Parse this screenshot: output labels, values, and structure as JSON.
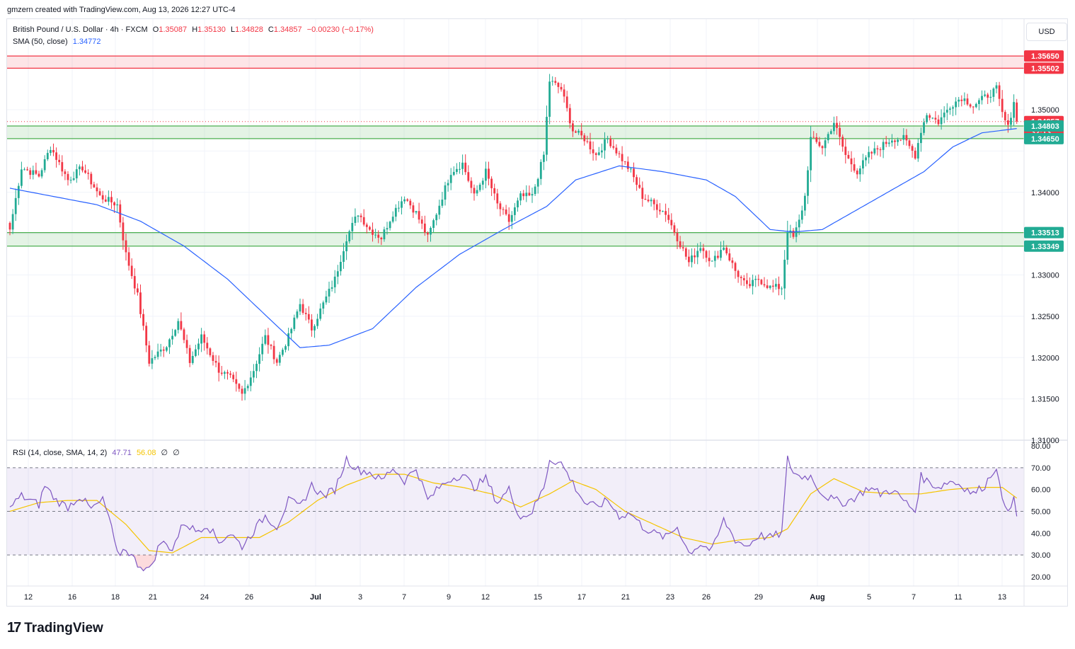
{
  "caption": "gmzern created with TradingView.com, Aug 13, 2026 12:27 UTC-4",
  "header": {
    "symbol": "British Pound / U.S. Dollar · 4h · FXCM",
    "o_label": "O",
    "o": "1.35087",
    "h_label": "H",
    "h": "1.35130",
    "l_label": "L",
    "l": "1.34828",
    "c_label": "C",
    "c": "1.34857",
    "change": "−0.00230 (−0.17%)",
    "sma_label": "SMA (50, close)",
    "sma_value": "1.34772",
    "rsi_label": "RSI (14, close, SMA, 14, 2)",
    "rsi_value": "47.71",
    "rsi_sma_value": "56.08",
    "rsi_extra1": "∅",
    "rsi_extra2": "∅"
  },
  "currency_button": "USD",
  "price_axis": {
    "ticks": [
      "1.35000",
      "1.34000",
      "1.33000",
      "1.32500",
      "1.32000",
      "1.31500",
      "1.31000"
    ],
    "tick_values": [
      1.35,
      1.34,
      1.33,
      1.325,
      1.32,
      1.315,
      1.31
    ],
    "labels": [
      {
        "text": "1.35650",
        "value": 1.3565,
        "color": "#f23645"
      },
      {
        "text": "1.35502",
        "value": 1.35502,
        "color": "#f23645"
      },
      {
        "text": "1.34857",
        "value": 1.34857,
        "color": "#f23645"
      },
      {
        "text": "32:13",
        "value": 1.3473,
        "color": "#f23645"
      },
      {
        "text": "1.34803",
        "value": 1.34803,
        "color": "#22ab94"
      },
      {
        "text": "1.34650",
        "value": 1.3465,
        "color": "#22ab94"
      },
      {
        "text": "1.33513",
        "value": 1.33513,
        "color": "#22ab94"
      },
      {
        "text": "1.33349",
        "value": 1.33349,
        "color": "#22ab94"
      }
    ],
    "hidden_ticks": [
      "1.34500",
      "1.33500"
    ]
  },
  "rsi_axis": {
    "ticks": [
      "80.00",
      "70.00",
      "60.00",
      "50.00",
      "40.00",
      "30.00",
      "20.00"
    ],
    "tick_values": [
      80,
      70,
      60,
      50,
      40,
      30,
      20
    ]
  },
  "time_axis": {
    "labels": [
      "12",
      "16",
      "18",
      "21",
      "24",
      "26",
      "Jul",
      "3",
      "7",
      "9",
      "12",
      "15",
      "17",
      "21",
      "23",
      "26",
      "29",
      "Aug",
      "5",
      "7",
      "11",
      "13"
    ],
    "bold": [
      "Jul",
      "Aug"
    ]
  },
  "colors": {
    "up": "#22ab94",
    "down": "#f23645",
    "sma": "#2962ff",
    "rsi": "#7e57c2",
    "rsi_sma": "#f5c400",
    "resistance_zone": "#f23645",
    "support_zone": "#4caf50"
  },
  "zones": [
    {
      "type": "resistance",
      "top": 1.3565,
      "bottom": 1.35502
    },
    {
      "type": "support",
      "top": 1.34803,
      "bottom": 1.3465
    },
    {
      "type": "support",
      "top": 1.33513,
      "bottom": 1.33349
    }
  ],
  "logo": {
    "mark": "17",
    "text": "TradingView"
  },
  "chart_data": [
    {
      "type": "candlestick",
      "symbol": "GBP/USD 4h",
      "ylim": [
        1.31,
        1.3595
      ],
      "x_ticks": [
        "12",
        "16",
        "18",
        "21",
        "24",
        "26",
        "Jul",
        "3",
        "7",
        "9",
        "12",
        "15",
        "17",
        "21",
        "23",
        "26",
        "29",
        "Aug",
        "5",
        "7",
        "11",
        "13"
      ],
      "close_anchors": [
        {
          "i": 0,
          "v": 1.3355
        },
        {
          "i": 4,
          "v": 1.343
        },
        {
          "i": 10,
          "v": 1.342
        },
        {
          "i": 14,
          "v": 1.3455
        },
        {
          "i": 20,
          "v": 1.3415
        },
        {
          "i": 25,
          "v": 1.343
        },
        {
          "i": 31,
          "v": 1.3395
        },
        {
          "i": 37,
          "v": 1.3385
        },
        {
          "i": 40,
          "v": 1.3325
        },
        {
          "i": 44,
          "v": 1.3275
        },
        {
          "i": 48,
          "v": 1.3195
        },
        {
          "i": 54,
          "v": 1.3215
        },
        {
          "i": 58,
          "v": 1.3245
        },
        {
          "i": 62,
          "v": 1.3195
        },
        {
          "i": 66,
          "v": 1.3225
        },
        {
          "i": 72,
          "v": 1.3185
        },
        {
          "i": 76,
          "v": 1.3175
        },
        {
          "i": 80,
          "v": 1.3155
        },
        {
          "i": 84,
          "v": 1.3185
        },
        {
          "i": 88,
          "v": 1.3225
        },
        {
          "i": 92,
          "v": 1.3195
        },
        {
          "i": 96,
          "v": 1.3225
        },
        {
          "i": 100,
          "v": 1.3265
        },
        {
          "i": 104,
          "v": 1.3235
        },
        {
          "i": 108,
          "v": 1.3265
        },
        {
          "i": 112,
          "v": 1.3295
        },
        {
          "i": 116,
          "v": 1.3345
        },
        {
          "i": 120,
          "v": 1.3375
        },
        {
          "i": 124,
          "v": 1.3355
        },
        {
          "i": 128,
          "v": 1.3345
        },
        {
          "i": 132,
          "v": 1.3375
        },
        {
          "i": 136,
          "v": 1.3395
        },
        {
          "i": 140,
          "v": 1.3375
        },
        {
          "i": 144,
          "v": 1.3345
        },
        {
          "i": 148,
          "v": 1.3385
        },
        {
          "i": 152,
          "v": 1.3425
        },
        {
          "i": 156,
          "v": 1.3435
        },
        {
          "i": 160,
          "v": 1.3395
        },
        {
          "i": 164,
          "v": 1.3425
        },
        {
          "i": 168,
          "v": 1.3385
        },
        {
          "i": 172,
          "v": 1.3365
        },
        {
          "i": 176,
          "v": 1.3395
        },
        {
          "i": 180,
          "v": 1.3395
        },
        {
          "i": 184,
          "v": 1.3445
        },
        {
          "i": 186,
          "v": 1.3535
        },
        {
          "i": 190,
          "v": 1.3525
        },
        {
          "i": 194,
          "v": 1.3475
        },
        {
          "i": 198,
          "v": 1.3465
        },
        {
          "i": 202,
          "v": 1.3445
        },
        {
          "i": 206,
          "v": 1.3465
        },
        {
          "i": 210,
          "v": 1.3445
        },
        {
          "i": 214,
          "v": 1.3425
        },
        {
          "i": 218,
          "v": 1.3395
        },
        {
          "i": 222,
          "v": 1.3385
        },
        {
          "i": 226,
          "v": 1.3375
        },
        {
          "i": 230,
          "v": 1.3345
        },
        {
          "i": 234,
          "v": 1.3315
        },
        {
          "i": 238,
          "v": 1.3335
        },
        {
          "i": 242,
          "v": 1.3315
        },
        {
          "i": 246,
          "v": 1.3335
        },
        {
          "i": 250,
          "v": 1.3305
        },
        {
          "i": 254,
          "v": 1.3285
        },
        {
          "i": 258,
          "v": 1.3295
        },
        {
          "i": 262,
          "v": 1.3285
        },
        {
          "i": 266,
          "v": 1.3285
        },
        {
          "i": 268,
          "v": 1.3355
        },
        {
          "i": 270,
          "v": 1.3345
        },
        {
          "i": 272,
          "v": 1.3365
        },
        {
          "i": 274,
          "v": 1.3395
        },
        {
          "i": 276,
          "v": 1.3465
        },
        {
          "i": 280,
          "v": 1.3455
        },
        {
          "i": 284,
          "v": 1.3485
        },
        {
          "i": 288,
          "v": 1.3445
        },
        {
          "i": 292,
          "v": 1.3425
        },
        {
          "i": 296,
          "v": 1.3445
        },
        {
          "i": 300,
          "v": 1.3455
        },
        {
          "i": 304,
          "v": 1.3465
        },
        {
          "i": 308,
          "v": 1.3465
        },
        {
          "i": 312,
          "v": 1.3445
        },
        {
          "i": 314,
          "v": 1.3475
        },
        {
          "i": 316,
          "v": 1.3495
        },
        {
          "i": 320,
          "v": 1.3485
        },
        {
          "i": 324,
          "v": 1.3505
        },
        {
          "i": 328,
          "v": 1.3515
        },
        {
          "i": 332,
          "v": 1.3505
        },
        {
          "i": 336,
          "v": 1.3515
        },
        {
          "i": 340,
          "v": 1.3525
        },
        {
          "i": 342,
          "v": 1.3495
        },
        {
          "i": 344,
          "v": 1.3478
        },
        {
          "i": 346,
          "v": 1.3511
        },
        {
          "i": 347,
          "v": 1.34857
        }
      ],
      "sma_anchors": [
        {
          "i": 0,
          "v": 1.3405
        },
        {
          "i": 30,
          "v": 1.3385
        },
        {
          "i": 45,
          "v": 1.3365
        },
        {
          "i": 60,
          "v": 1.3335
        },
        {
          "i": 75,
          "v": 1.3295
        },
        {
          "i": 90,
          "v": 1.3245
        },
        {
          "i": 100,
          "v": 1.3212
        },
        {
          "i": 110,
          "v": 1.3215
        },
        {
          "i": 125,
          "v": 1.3235
        },
        {
          "i": 140,
          "v": 1.3285
        },
        {
          "i": 155,
          "v": 1.3325
        },
        {
          "i": 170,
          "v": 1.3355
        },
        {
          "i": 185,
          "v": 1.3383
        },
        {
          "i": 195,
          "v": 1.3415
        },
        {
          "i": 210,
          "v": 1.3432
        },
        {
          "i": 225,
          "v": 1.3425
        },
        {
          "i": 240,
          "v": 1.3415
        },
        {
          "i": 250,
          "v": 1.3395
        },
        {
          "i": 262,
          "v": 1.3355
        },
        {
          "i": 270,
          "v": 1.3352
        },
        {
          "i": 280,
          "v": 1.3355
        },
        {
          "i": 290,
          "v": 1.3375
        },
        {
          "i": 300,
          "v": 1.3395
        },
        {
          "i": 315,
          "v": 1.3425
        },
        {
          "i": 325,
          "v": 1.3455
        },
        {
          "i": 335,
          "v": 1.3472
        },
        {
          "i": 347,
          "v": 1.34772
        }
      ],
      "last": {
        "open": 1.35087,
        "high": 1.3513,
        "low": 1.34828,
        "close": 1.34857
      }
    },
    {
      "type": "line",
      "name": "RSI (14, close, SMA, 14, 2)",
      "ylim": [
        17,
        82
      ],
      "levels": [
        70,
        50,
        30
      ],
      "rsi_anchors": [
        {
          "i": 0,
          "v": 52
        },
        {
          "i": 4,
          "v": 57
        },
        {
          "i": 10,
          "v": 53
        },
        {
          "i": 12,
          "v": 62
        },
        {
          "i": 16,
          "v": 55
        },
        {
          "i": 20,
          "v": 52
        },
        {
          "i": 24,
          "v": 57
        },
        {
          "i": 28,
          "v": 51
        },
        {
          "i": 32,
          "v": 55
        },
        {
          "i": 34,
          "v": 48
        },
        {
          "i": 37,
          "v": 30
        },
        {
          "i": 40,
          "v": 33
        },
        {
          "i": 44,
          "v": 26
        },
        {
          "i": 48,
          "v": 23
        },
        {
          "i": 52,
          "v": 36
        },
        {
          "i": 56,
          "v": 33
        },
        {
          "i": 60,
          "v": 45
        },
        {
          "i": 64,
          "v": 41
        },
        {
          "i": 68,
          "v": 44
        },
        {
          "i": 72,
          "v": 36
        },
        {
          "i": 76,
          "v": 40
        },
        {
          "i": 80,
          "v": 34
        },
        {
          "i": 84,
          "v": 41
        },
        {
          "i": 88,
          "v": 48
        },
        {
          "i": 92,
          "v": 43
        },
        {
          "i": 96,
          "v": 55
        },
        {
          "i": 100,
          "v": 52
        },
        {
          "i": 104,
          "v": 62
        },
        {
          "i": 108,
          "v": 57
        },
        {
          "i": 112,
          "v": 60
        },
        {
          "i": 116,
          "v": 74
        },
        {
          "i": 120,
          "v": 69
        },
        {
          "i": 124,
          "v": 68
        },
        {
          "i": 128,
          "v": 64
        },
        {
          "i": 132,
          "v": 70
        },
        {
          "i": 136,
          "v": 64
        },
        {
          "i": 140,
          "v": 70
        },
        {
          "i": 144,
          "v": 55
        },
        {
          "i": 148,
          "v": 61
        },
        {
          "i": 152,
          "v": 65
        },
        {
          "i": 156,
          "v": 67
        },
        {
          "i": 160,
          "v": 61
        },
        {
          "i": 164,
          "v": 65
        },
        {
          "i": 168,
          "v": 54
        },
        {
          "i": 172,
          "v": 60
        },
        {
          "i": 176,
          "v": 47
        },
        {
          "i": 180,
          "v": 50
        },
        {
          "i": 184,
          "v": 61
        },
        {
          "i": 186,
          "v": 74
        },
        {
          "i": 190,
          "v": 72
        },
        {
          "i": 194,
          "v": 63
        },
        {
          "i": 198,
          "v": 54
        },
        {
          "i": 202,
          "v": 52
        },
        {
          "i": 206,
          "v": 55
        },
        {
          "i": 210,
          "v": 48
        },
        {
          "i": 214,
          "v": 49
        },
        {
          "i": 218,
          "v": 43
        },
        {
          "i": 222,
          "v": 40
        },
        {
          "i": 226,
          "v": 38
        },
        {
          "i": 230,
          "v": 43
        },
        {
          "i": 234,
          "v": 31
        },
        {
          "i": 238,
          "v": 35
        },
        {
          "i": 242,
          "v": 32
        },
        {
          "i": 246,
          "v": 46
        },
        {
          "i": 250,
          "v": 37
        },
        {
          "i": 254,
          "v": 34
        },
        {
          "i": 258,
          "v": 39
        },
        {
          "i": 262,
          "v": 38
        },
        {
          "i": 266,
          "v": 40
        },
        {
          "i": 268,
          "v": 74
        },
        {
          "i": 270,
          "v": 68
        },
        {
          "i": 272,
          "v": 66
        },
        {
          "i": 276,
          "v": 66
        },
        {
          "i": 280,
          "v": 58
        },
        {
          "i": 284,
          "v": 55
        },
        {
          "i": 288,
          "v": 54
        },
        {
          "i": 292,
          "v": 57
        },
        {
          "i": 296,
          "v": 61
        },
        {
          "i": 300,
          "v": 58
        },
        {
          "i": 304,
          "v": 60
        },
        {
          "i": 308,
          "v": 55
        },
        {
          "i": 312,
          "v": 50
        },
        {
          "i": 314,
          "v": 66
        },
        {
          "i": 316,
          "v": 64
        },
        {
          "i": 320,
          "v": 61
        },
        {
          "i": 324,
          "v": 64
        },
        {
          "i": 328,
          "v": 62
        },
        {
          "i": 332,
          "v": 58
        },
        {
          "i": 336,
          "v": 62
        },
        {
          "i": 340,
          "v": 71
        },
        {
          "i": 342,
          "v": 54
        },
        {
          "i": 344,
          "v": 52
        },
        {
          "i": 346,
          "v": 55
        },
        {
          "i": 347,
          "v": 47.71
        }
      ],
      "rsi_sma_anchors": [
        {
          "i": 0,
          "v": 50
        },
        {
          "i": 10,
          "v": 54
        },
        {
          "i": 20,
          "v": 55
        },
        {
          "i": 30,
          "v": 55
        },
        {
          "i": 40,
          "v": 44
        },
        {
          "i": 48,
          "v": 32
        },
        {
          "i": 56,
          "v": 31
        },
        {
          "i": 66,
          "v": 38
        },
        {
          "i": 76,
          "v": 38
        },
        {
          "i": 86,
          "v": 38
        },
        {
          "i": 96,
          "v": 45
        },
        {
          "i": 106,
          "v": 55
        },
        {
          "i": 116,
          "v": 62
        },
        {
          "i": 126,
          "v": 67
        },
        {
          "i": 136,
          "v": 67
        },
        {
          "i": 146,
          "v": 63
        },
        {
          "i": 156,
          "v": 61
        },
        {
          "i": 166,
          "v": 58
        },
        {
          "i": 176,
          "v": 52
        },
        {
          "i": 186,
          "v": 58
        },
        {
          "i": 194,
          "v": 64
        },
        {
          "i": 202,
          "v": 60
        },
        {
          "i": 212,
          "v": 50
        },
        {
          "i": 222,
          "v": 44
        },
        {
          "i": 232,
          "v": 38
        },
        {
          "i": 242,
          "v": 35
        },
        {
          "i": 252,
          "v": 37
        },
        {
          "i": 262,
          "v": 38
        },
        {
          "i": 268,
          "v": 42
        },
        {
          "i": 276,
          "v": 58
        },
        {
          "i": 284,
          "v": 65
        },
        {
          "i": 294,
          "v": 59
        },
        {
          "i": 304,
          "v": 58
        },
        {
          "i": 314,
          "v": 58
        },
        {
          "i": 324,
          "v": 60
        },
        {
          "i": 334,
          "v": 61
        },
        {
          "i": 342,
          "v": 61
        },
        {
          "i": 347,
          "v": 56.08
        }
      ]
    }
  ]
}
